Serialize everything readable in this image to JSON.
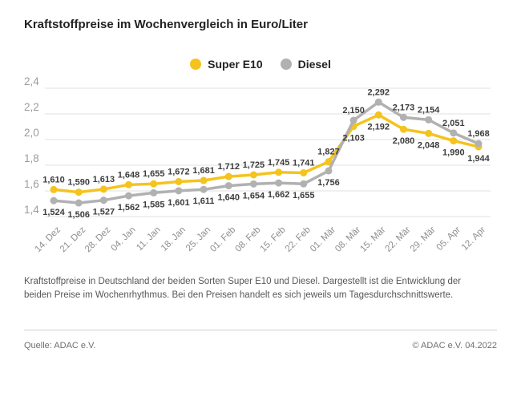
{
  "title": "Kraftstoffpreise im Wochenvergleich in Euro/Liter",
  "legend": [
    {
      "label": "Super E10",
      "color": "#F5C31D"
    },
    {
      "label": "Diesel",
      "color": "#B1B1B1"
    }
  ],
  "chart_data": {
    "type": "line",
    "title": "Kraftstoffpreise im Wochenvergleich in Euro/Liter",
    "unit": "Euro/Liter",
    "categories": [
      "14. Dez",
      "21. Dez",
      "28. Dez",
      "04. Jan",
      "11. Jan",
      "18. Jan",
      "25. Jan",
      "01. Feb",
      "08. Feb",
      "15. Feb",
      "22. Feb",
      "01. Mär",
      "08. Mär",
      "15. Mär",
      "22. Mär",
      "29. Mär",
      "05. Apr",
      "12. Apr"
    ],
    "series": [
      {
        "name": "Super E10",
        "color": "#F5C31D",
        "values": [
          1.61,
          1.59,
          1.613,
          1.648,
          1.655,
          1.672,
          1.681,
          1.712,
          1.725,
          1.745,
          1.741,
          1.827,
          2.103,
          2.192,
          2.08,
          2.048,
          1.99,
          1.944
        ]
      },
      {
        "name": "Diesel",
        "color": "#B1B1B1",
        "values": [
          1.524,
          1.506,
          1.527,
          1.562,
          1.585,
          1.601,
          1.611,
          1.64,
          1.654,
          1.662,
          1.655,
          1.756,
          2.15,
          2.292,
          2.173,
          2.154,
          2.051,
          1.968
        ]
      }
    ],
    "ylim": [
      1.4,
      2.4
    ],
    "yticks": [
      2.4,
      2.2,
      2.0,
      1.8,
      1.6,
      1.4
    ],
    "grid": true,
    "legend_position": "top-center",
    "decimal_separator": ",",
    "colors": {
      "gridline": "#E2E2E2",
      "ytick_text": "#9C9C9C",
      "xtick_text": "#8E8E8E",
      "datalabel_text": "#3C3C3C"
    }
  },
  "description": "Kraftstoffpreise in Deutschland der beiden Sorten Super E10 und Diesel. Dargestellt ist die Entwicklung der beiden Preise im Wochenrhythmus. Bei den Preisen handelt es sich jeweils um Tagesdurchschnittswerte.",
  "footer": {
    "source": "Quelle: ADAC e.V.",
    "copyright": "© ADAC e.V. 04.2022"
  }
}
